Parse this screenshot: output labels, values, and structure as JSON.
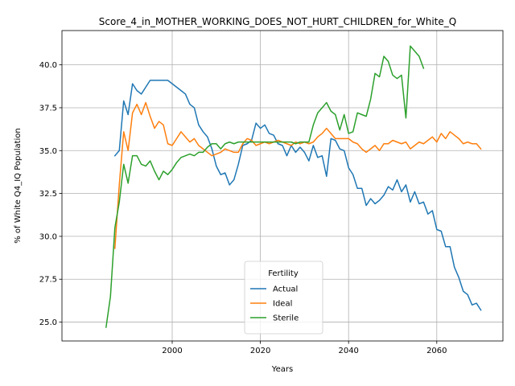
{
  "chart_data": {
    "type": "line",
    "title": "Score_4_in_MOTHER_WORKING_DOES_NOT_HURT_CHILDREN_for_White_Q",
    "xlabel": "Years",
    "ylabel": "% of White Q4_IQ Population",
    "xlim": [
      1975,
      2075
    ],
    "ylim": [
      23.9,
      42.0
    ],
    "xticks": [
      2000,
      2020,
      2040,
      2060
    ],
    "yticks": [
      25.0,
      27.5,
      30.0,
      32.5,
      35.0,
      37.5,
      40.0
    ],
    "grid": true,
    "legend": {
      "title": "Fertility",
      "position": "bottom-center"
    },
    "series": [
      {
        "name": "Actual",
        "color": "#1f77b4",
        "x": [
          1987,
          1988,
          1989,
          1990,
          1991,
          1992,
          1993,
          1994,
          1995,
          1996,
          1997,
          1998,
          1999,
          2000,
          2001,
          2002,
          2003,
          2004,
          2005,
          2006,
          2007,
          2008,
          2009,
          2010,
          2011,
          2012,
          2013,
          2014,
          2015,
          2016,
          2017,
          2018,
          2019,
          2020,
          2021,
          2022,
          2023,
          2024,
          2025,
          2026,
          2027,
          2028,
          2029,
          2030,
          2031,
          2032,
          2033,
          2034,
          2035,
          2036,
          2037,
          2038,
          2039,
          2040,
          2041,
          2042,
          2043,
          2044,
          2045,
          2046,
          2047,
          2048,
          2049,
          2050,
          2051,
          2052,
          2053,
          2054,
          2055,
          2056,
          2057,
          2058,
          2059,
          2060,
          2061,
          2062,
          2063,
          2064,
          2065,
          2066,
          2067,
          2068,
          2069,
          2070
        ],
        "values": [
          34.7,
          35.0,
          37.9,
          37.1,
          38.9,
          38.5,
          38.3,
          38.7,
          39.1,
          39.1,
          39.1,
          39.1,
          39.1,
          38.9,
          38.7,
          38.5,
          38.3,
          37.7,
          37.5,
          36.5,
          36.1,
          35.8,
          35.1,
          34.1,
          33.6,
          33.7,
          33.0,
          33.3,
          34.2,
          35.3,
          35.4,
          35.6,
          36.6,
          36.3,
          36.5,
          36.0,
          35.9,
          35.4,
          35.3,
          34.7,
          35.3,
          34.9,
          35.2,
          34.9,
          34.4,
          35.3,
          34.6,
          34.7,
          33.5,
          35.7,
          35.6,
          35.1,
          35.0,
          34.0,
          33.6,
          32.8,
          32.8,
          31.8,
          32.2,
          31.9,
          32.1,
          32.4,
          32.9,
          32.7,
          33.3,
          32.6,
          33.0,
          32.0,
          32.6,
          31.9,
          32.0,
          31.3,
          31.5,
          30.4,
          30.3,
          29.4,
          29.4,
          28.2,
          27.6,
          26.8,
          26.6,
          26.0,
          26.1,
          25.7
        ]
      },
      {
        "name": "Ideal",
        "color": "#ff7f0e",
        "x": [
          1987,
          1988,
          1989,
          1990,
          1991,
          1992,
          1993,
          1994,
          1995,
          1996,
          1997,
          1998,
          1999,
          2000,
          2001,
          2002,
          2003,
          2004,
          2005,
          2006,
          2007,
          2008,
          2009,
          2010,
          2011,
          2012,
          2013,
          2014,
          2015,
          2016,
          2017,
          2018,
          2019,
          2020,
          2021,
          2022,
          2023,
          2024,
          2025,
          2026,
          2027,
          2028,
          2029,
          2030,
          2031,
          2032,
          2033,
          2034,
          2035,
          2036,
          2037,
          2038,
          2039,
          2040,
          2041,
          2042,
          2043,
          2044,
          2045,
          2046,
          2047,
          2048,
          2049,
          2050,
          2051,
          2052,
          2053,
          2054,
          2055,
          2056,
          2057,
          2058,
          2059,
          2060,
          2061,
          2062,
          2063,
          2064,
          2065,
          2066,
          2067,
          2068,
          2069,
          2070
        ],
        "values": [
          29.3,
          33.0,
          36.1,
          35.0,
          37.2,
          37.7,
          37.1,
          37.8,
          37.0,
          36.3,
          36.7,
          36.5,
          35.4,
          35.3,
          35.7,
          36.1,
          35.8,
          35.5,
          35.7,
          35.3,
          35.1,
          34.9,
          34.7,
          34.8,
          34.9,
          35.1,
          35.0,
          34.9,
          34.9,
          35.4,
          35.7,
          35.6,
          35.3,
          35.4,
          35.5,
          35.4,
          35.5,
          35.6,
          35.5,
          35.4,
          35.3,
          35.5,
          35.4,
          35.5,
          35.4,
          35.5,
          35.8,
          36.0,
          36.3,
          36.0,
          35.7,
          35.7,
          35.7,
          35.7,
          35.5,
          35.4,
          35.1,
          34.9,
          35.1,
          35.3,
          35.0,
          35.4,
          35.4,
          35.6,
          35.5,
          35.4,
          35.5,
          35.1,
          35.3,
          35.5,
          35.4,
          35.6,
          35.8,
          35.5,
          36.0,
          35.7,
          36.1,
          35.9,
          35.7,
          35.4,
          35.5,
          35.4,
          35.4,
          35.1
        ]
      },
      {
        "name": "Sterile",
        "color": "#2ca02c",
        "x": [
          1985,
          1986,
          1987,
          1988,
          1989,
          1990,
          1991,
          1992,
          1993,
          1994,
          1995,
          1996,
          1997,
          1998,
          1999,
          2000,
          2001,
          2002,
          2003,
          2004,
          2005,
          2006,
          2007,
          2008,
          2009,
          2010,
          2011,
          2012,
          2013,
          2014,
          2015,
          2016,
          2017,
          2018,
          2019,
          2020,
          2021,
          2022,
          2023,
          2024,
          2025,
          2026,
          2027,
          2028,
          2029,
          2030,
          2031,
          2032,
          2033,
          2034,
          2035,
          2036,
          2037,
          2038,
          2039,
          2040,
          2041,
          2042,
          2043,
          2044,
          2045,
          2046,
          2047,
          2048,
          2049,
          2050,
          2051,
          2052,
          2053,
          2054,
          2055,
          2056,
          2057
        ],
        "values": [
          24.7,
          26.5,
          30.5,
          32.0,
          34.2,
          33.1,
          34.7,
          34.7,
          34.2,
          34.1,
          34.4,
          33.8,
          33.3,
          33.8,
          33.6,
          33.9,
          34.3,
          34.6,
          34.7,
          34.8,
          34.7,
          34.9,
          34.9,
          35.2,
          35.4,
          35.4,
          35.1,
          35.4,
          35.5,
          35.4,
          35.5,
          35.5,
          35.5,
          35.5,
          35.5,
          35.5,
          35.5,
          35.5,
          35.5,
          35.5,
          35.5,
          35.5,
          35.5,
          35.4,
          35.5,
          35.5,
          35.5,
          36.5,
          37.2,
          37.5,
          37.8,
          37.3,
          37.1,
          36.2,
          37.1,
          36.0,
          36.1,
          37.2,
          37.1,
          37.0,
          38.0,
          39.5,
          39.3,
          40.5,
          40.2,
          39.4,
          39.2,
          39.4,
          36.9,
          41.1,
          40.8,
          40.5,
          39.8
        ]
      }
    ]
  }
}
